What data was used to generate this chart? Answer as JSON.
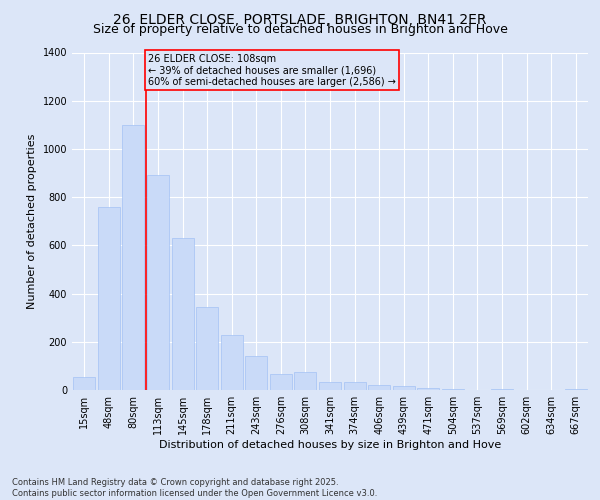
{
  "title": "26, ELDER CLOSE, PORTSLADE, BRIGHTON, BN41 2ER",
  "subtitle": "Size of property relative to detached houses in Brighton and Hove",
  "xlabel": "Distribution of detached houses by size in Brighton and Hove",
  "ylabel": "Number of detached properties",
  "footer": "Contains HM Land Registry data © Crown copyright and database right 2025.\nContains public sector information licensed under the Open Government Licence v3.0.",
  "categories": [
    "15sqm",
    "48sqm",
    "80sqm",
    "113sqm",
    "145sqm",
    "178sqm",
    "211sqm",
    "243sqm",
    "276sqm",
    "308sqm",
    "341sqm",
    "374sqm",
    "406sqm",
    "439sqm",
    "471sqm",
    "504sqm",
    "537sqm",
    "569sqm",
    "602sqm",
    "634sqm",
    "667sqm"
  ],
  "values": [
    55,
    760,
    1100,
    890,
    630,
    345,
    230,
    140,
    65,
    75,
    35,
    35,
    20,
    15,
    10,
    5,
    0,
    5,
    0,
    0,
    5
  ],
  "bar_color": "#c9daf8",
  "bar_edge_color": "#a4c2f4",
  "background_color": "#dce6f8",
  "grid_color": "#ffffff",
  "vline_x": 2.5,
  "vline_color": "red",
  "annotation_text": "26 ELDER CLOSE: 108sqm\n← 39% of detached houses are smaller (1,696)\n60% of semi-detached houses are larger (2,586) →",
  "annotation_box_color": "red",
  "ylim": [
    0,
    1400
  ],
  "yticks": [
    0,
    200,
    400,
    600,
    800,
    1000,
    1200,
    1400
  ],
  "title_fontsize": 10,
  "subtitle_fontsize": 9,
  "axis_fontsize": 8,
  "tick_fontsize": 7,
  "annotation_fontsize": 7,
  "footer_fontsize": 6
}
